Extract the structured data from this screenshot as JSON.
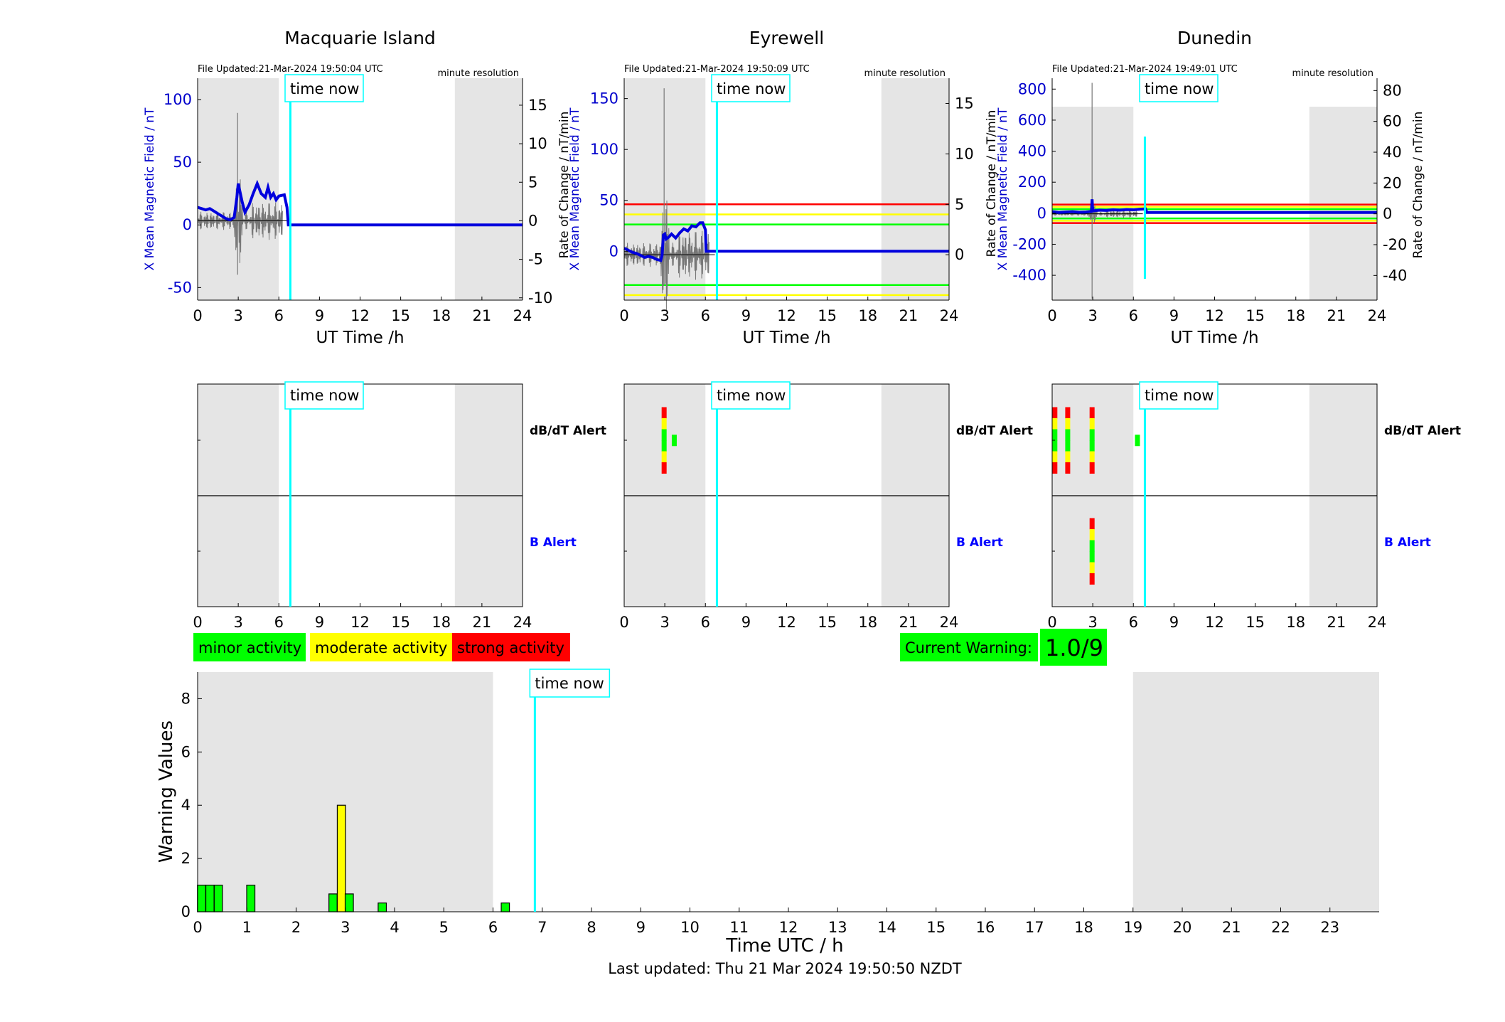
{
  "stations": [
    {
      "title": "Macquarie Island",
      "file_updated": "File Updated:21-Mar-2024 19:50:04 UTC",
      "resolution": "minute resolution",
      "ylabel_left": "X Mean Magnetic Field / nT",
      "ylabel_right": "",
      "yticks_left": [
        "-50",
        "0",
        "50",
        "100"
      ],
      "yticks_right": [
        "-10",
        "-5",
        "0",
        "5",
        "10",
        "15"
      ],
      "bx_series": [
        [
          0,
          14
        ],
        [
          0.3,
          13
        ],
        [
          0.6,
          12
        ],
        [
          0.9,
          13
        ],
        [
          1.2,
          11
        ],
        [
          1.5,
          9
        ],
        [
          1.8,
          7
        ],
        [
          2.1,
          5
        ],
        [
          2.4,
          4
        ],
        [
          2.7,
          6
        ],
        [
          2.9,
          22
        ],
        [
          3.0,
          33
        ],
        [
          3.1,
          28
        ],
        [
          3.3,
          18
        ],
        [
          3.5,
          10
        ],
        [
          3.8,
          16
        ],
        [
          4.1,
          25
        ],
        [
          4.4,
          33
        ],
        [
          4.7,
          25
        ],
        [
          5.0,
          22
        ],
        [
          5.2,
          30
        ],
        [
          5.4,
          22
        ],
        [
          5.6,
          25
        ],
        [
          5.8,
          20
        ],
        [
          6.0,
          23
        ],
        [
          6.4,
          24
        ],
        [
          6.6,
          14
        ],
        [
          6.7,
          0
        ],
        [
          24,
          0
        ]
      ],
      "warning_lines": [],
      "alerts_dbdt": [],
      "alerts_b": []
    },
    {
      "title": "Eyrewell",
      "file_updated": "File Updated:21-Mar-2024 19:50:09 UTC",
      "resolution": "minute resolution",
      "ylabel_left": "X Mean Magnetic Field / nT",
      "ylabel_right": "Rate of Change / nT/min",
      "yticks_left": [
        "0",
        "50",
        "100",
        "150"
      ],
      "yticks_right": [
        "0",
        "5",
        "10",
        "15"
      ],
      "bx_series": [
        [
          0,
          3
        ],
        [
          0.3,
          1
        ],
        [
          0.6,
          -1
        ],
        [
          0.9,
          -2
        ],
        [
          1.2,
          -4
        ],
        [
          1.5,
          -6
        ],
        [
          1.8,
          -5
        ],
        [
          2.1,
          -6
        ],
        [
          2.4,
          -8
        ],
        [
          2.7,
          -9
        ],
        [
          2.8,
          -4
        ],
        [
          2.9,
          16
        ],
        [
          3.0,
          17
        ],
        [
          3.1,
          12
        ],
        [
          3.3,
          14
        ],
        [
          3.5,
          17
        ],
        [
          3.8,
          13
        ],
        [
          4.1,
          18
        ],
        [
          4.4,
          22
        ],
        [
          4.7,
          20
        ],
        [
          5.0,
          25
        ],
        [
          5.3,
          24
        ],
        [
          5.6,
          28
        ],
        [
          5.8,
          28
        ],
        [
          6.0,
          21
        ],
        [
          6.05,
          0
        ],
        [
          24,
          0
        ]
      ],
      "warning_lines": [
        {
          "y": 50,
          "color": "#ff0000"
        },
        {
          "y": 40,
          "color": "#ffff00"
        },
        {
          "y": 30,
          "color": "#00ff00"
        },
        {
          "y": -30,
          "color": "#00ff00"
        },
        {
          "y": -40,
          "color": "#ffff00"
        }
      ],
      "alerts_dbdt": [
        {
          "t": 2.95,
          "levels": [
            "red",
            "yellow",
            "green",
            "green",
            "yellow",
            "red"
          ]
        },
        {
          "t": 3.7,
          "levels": [
            "green"
          ]
        }
      ],
      "alerts_b": []
    },
    {
      "title": "Dunedin",
      "file_updated": "File Updated:21-Mar-2024 19:49:01 UTC",
      "resolution": "minute resolution",
      "ylabel_left": "X Mean Magnetic Field / nT",
      "ylabel_right": "Rate of Change / nT/min",
      "ylabel_right_outer": "Rate of Change / nT/min",
      "yticks_left": [
        "-400",
        "-200",
        "0",
        "200",
        "400",
        "600",
        "800"
      ],
      "yticks_right": [
        "-40",
        "-20",
        "0",
        "20",
        "40",
        "60",
        "80"
      ],
      "bx_series": [
        [
          0,
          10
        ],
        [
          0.5,
          5
        ],
        [
          1.0,
          8
        ],
        [
          1.5,
          10
        ],
        [
          2.0,
          6
        ],
        [
          2.5,
          8
        ],
        [
          2.9,
          12
        ],
        [
          2.95,
          90
        ],
        [
          3.0,
          15
        ],
        [
          3.5,
          20
        ],
        [
          4.0,
          18
        ],
        [
          4.5,
          22
        ],
        [
          5.0,
          20
        ],
        [
          5.5,
          24
        ],
        [
          6.0,
          22
        ],
        [
          6.5,
          26
        ],
        [
          6.9,
          28
        ],
        [
          7.0,
          5
        ],
        [
          24,
          5
        ]
      ],
      "warning_lines": [
        {
          "y": 60,
          "color": "#ff0000"
        },
        {
          "y": 45,
          "color": "#ffff00"
        },
        {
          "y": 30,
          "color": "#00ff00"
        },
        {
          "y": -30,
          "color": "#00ff00"
        },
        {
          "y": -45,
          "color": "#ffff00"
        },
        {
          "y": -60,
          "color": "#ff0000"
        }
      ],
      "alerts_dbdt": [
        {
          "t": 0.2,
          "levels": [
            "red",
            "yellow",
            "green",
            "green",
            "yellow",
            "red"
          ]
        },
        {
          "t": 1.15,
          "levels": [
            "red",
            "yellow",
            "green",
            "green",
            "yellow",
            "red"
          ]
        },
        {
          "t": 2.95,
          "levels": [
            "red",
            "yellow",
            "green",
            "green",
            "yellow",
            "red"
          ]
        },
        {
          "t": 6.3,
          "levels": [
            "green"
          ]
        }
      ],
      "alerts_b": [
        {
          "t": 2.95,
          "levels": [
            "red",
            "yellow",
            "green",
            "green",
            "yellow",
            "red"
          ]
        }
      ]
    }
  ],
  "xlabel": "UT Time /h",
  "xticks": [
    "0",
    "3",
    "6",
    "9",
    "12",
    "15",
    "18",
    "21",
    "24"
  ],
  "time_now_label": "time now",
  "time_now_hours": 6.85,
  "dbdt_alert_label": "dB/dT Alert",
  "b_alert_label": "B Alert",
  "shade_periods": [
    [
      0,
      6
    ],
    [
      19,
      24
    ]
  ],
  "legend": {
    "minor": "minor activity",
    "moderate": "moderate activity",
    "strong": "strong activity",
    "minor_color": "#00ff00",
    "moderate_color": "#ffff00",
    "strong_color": "#ff0000"
  },
  "current_warning": {
    "label": "Current Warning:",
    "value": "1.0/9",
    "color": "#00ff00"
  },
  "chart_data": {
    "type": "bar",
    "ylabel": "Warning Values",
    "xlabel": "Time UTC / h",
    "ylim": [
      0,
      9
    ],
    "xlim": [
      0,
      24
    ],
    "yticks": [
      "0",
      "2",
      "4",
      "6",
      "8"
    ],
    "xticks": [
      "0",
      "1",
      "2",
      "3",
      "4",
      "5",
      "6",
      "7",
      "8",
      "9",
      "10",
      "11",
      "12",
      "13",
      "14",
      "15",
      "16",
      "17",
      "18",
      "19",
      "20",
      "21",
      "22",
      "23"
    ],
    "bars": [
      {
        "x": 0.08,
        "value": 1,
        "color": "#00ff00"
      },
      {
        "x": 0.25,
        "value": 1,
        "color": "#00ff00"
      },
      {
        "x": 0.42,
        "value": 1,
        "color": "#00ff00"
      },
      {
        "x": 1.08,
        "value": 1,
        "color": "#00ff00"
      },
      {
        "x": 2.75,
        "value": 0.67,
        "color": "#00ff00"
      },
      {
        "x": 2.92,
        "value": 4,
        "color": "#ffff00"
      },
      {
        "x": 3.08,
        "value": 0.67,
        "color": "#00ff00"
      },
      {
        "x": 3.75,
        "value": 0.33,
        "color": "#00ff00"
      },
      {
        "x": 6.25,
        "value": 0.33,
        "color": "#00ff00"
      }
    ],
    "time_now_hours": 6.85
  },
  "footer": "Last updated: Thu 21 Mar 2024 19:50:50 NZDT"
}
